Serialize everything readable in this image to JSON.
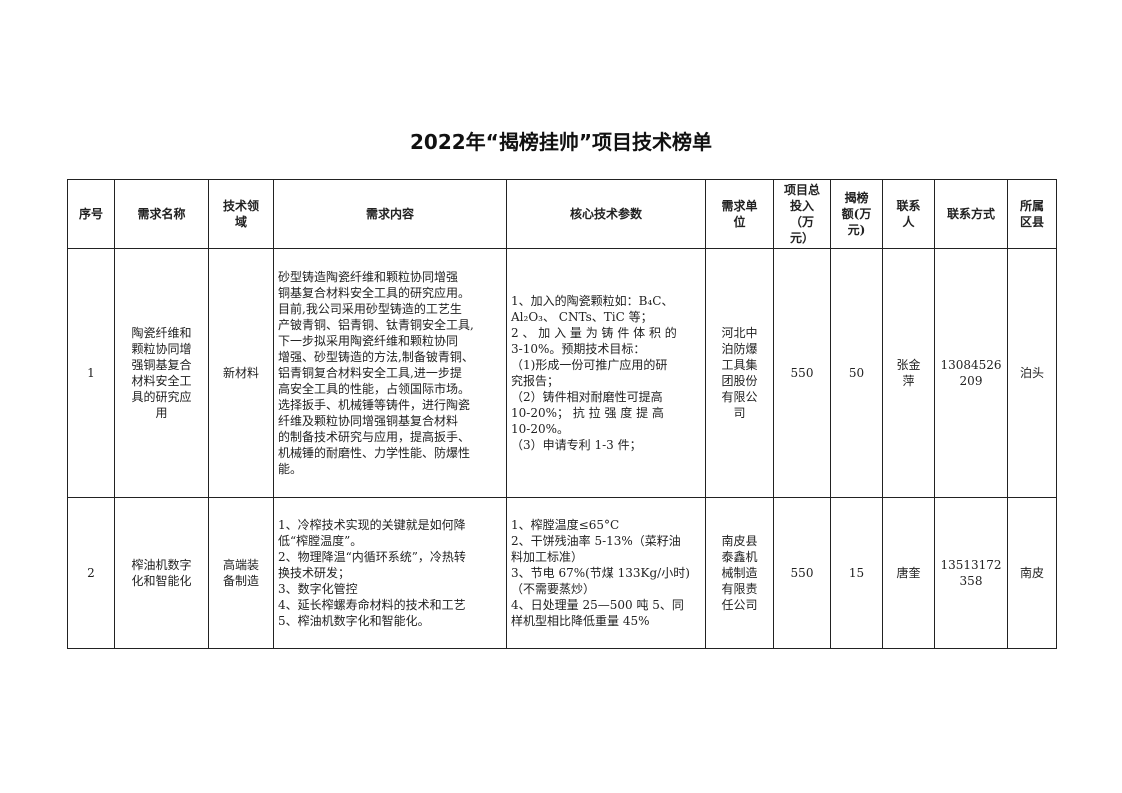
{
  "title": "2022年“揭榜挂帅”项目技术榜单",
  "headers": [
    "序号",
    "需求名称",
    "技术领\n域",
    "需求内容",
    "核心技术参数",
    "需求单\n位",
    "项目总\n投入\n（万\n元）",
    "揭榜\n额(万\n元)",
    "联系\n人",
    "联系方式",
    "所属\n区县"
  ],
  "rows": [
    {
      "no": "1",
      "name": "陶瓷纤维和\n颗粒协同增\n强铜基复合\n材料安全工\n具的研究应\n用",
      "field": "新材料",
      "content": "砂型铸造陶瓷纤维和颗粒协同增强\n铜基复合材料安全工具的研究应用。\n目前,我公司采用砂型铸造的工艺生\n产铍青铜、铝青铜、钛青铜安全工具,\n下一步拟采用陶瓷纤维和颗粒协同\n增强、砂型铸造的方法,制备铍青铜、\n铝青铜复合材料安全工具,进一步提\n高安全工具的性能，占领国际市场。\n选择扳手、机械锤等铸件，进行陶瓷\n纤维及颗粒协同增强铜基复合材料\n的制备技术研究与应用，提高扳手、\n机械锤的耐磨性、力学性能、防爆性\n能。",
      "params": "1、加入的陶瓷颗粒如：B₄C、\nAl₂O₃、 CNTs、TiC 等；\n2 、 加 入 量 为 铸 件 体 积 的\n3-10%。预期技术目标：\n（1)形成一份可推广应用的研\n究报告；\n（2）铸件相对耐磨性可提高\n10-20%； 抗 拉 强 度 提 高\n10-20%。\n（3）申请专利 1-3 件；",
      "unit": "河北中\n泊防爆\n工具集\n团股份\n有限公\n司",
      "investment": "550",
      "award": "50",
      "contact": "张金\n萍",
      "phone": "13084526\n209",
      "county": "泊头"
    },
    {
      "no": "2",
      "name": "榨油机数字\n化和智能化",
      "field": "高端装\n备制造",
      "content": "1、冷榨技术实现的关键就是如何降\n低“榨膛温度”。\n2、物理降温“内循环系统”，冷热转\n换技术研发；\n3、数字化管控\n4、延长榨螺寿命材料的技术和工艺\n5、榨油机数字化和智能化。",
      "params": "1、榨膛温度≤65°C\n2、干饼残油率 5-13%（菜籽油\n料加工标准）\n3、节电 67%(节煤 133Kg/小时)\n（不需要蒸炒）\n4、日处理量 25—500 吨 5、同\n样机型相比降低重量 45%",
      "unit": "南皮县\n泰鑫机\n械制造\n有限责\n任公司",
      "investment": "550",
      "award": "15",
      "contact": "唐奎",
      "phone": "13513172\n358",
      "county": "南皮"
    }
  ]
}
